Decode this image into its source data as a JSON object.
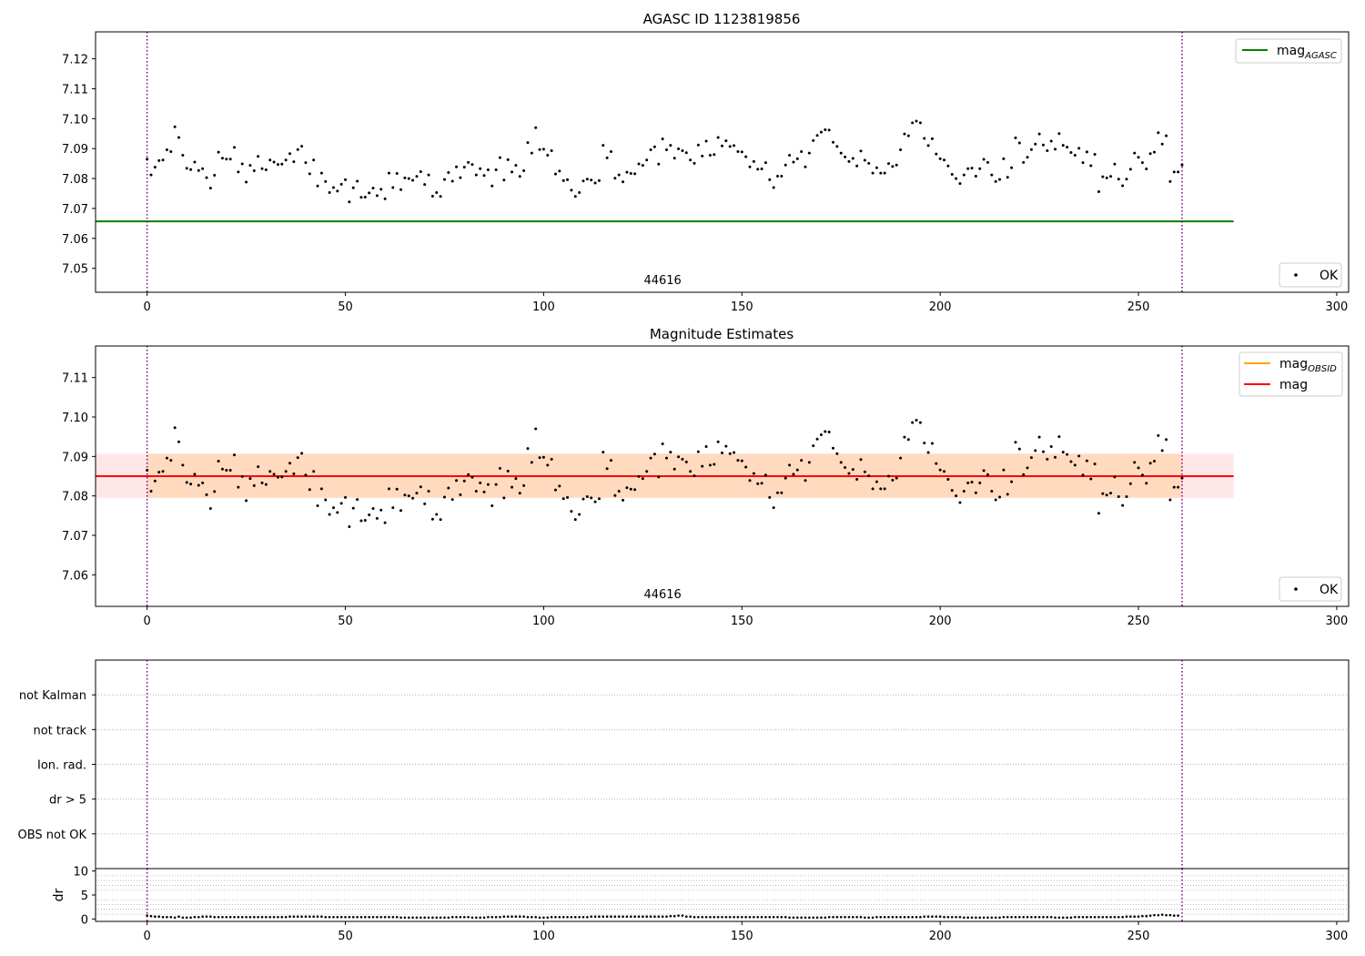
{
  "chart_data": [
    {
      "type": "scatter",
      "title": "AGASC ID 1123819856",
      "xlim": [
        -13,
        303
      ],
      "ylim": [
        7.042,
        7.129
      ],
      "x_ticks": [
        0,
        50,
        100,
        150,
        200,
        250,
        300
      ],
      "y_ticks": [
        7.05,
        7.06,
        7.07,
        7.08,
        7.09,
        7.1,
        7.11,
        7.12
      ],
      "y_tick_decimals": 2,
      "obsid_label": "44616",
      "obsid_label_x": 130,
      "vlines": [
        0,
        261
      ],
      "vline_color": "#800080",
      "hline": {
        "name": "mag_AGASC",
        "value": 7.0657,
        "x_range": [
          -13,
          274
        ],
        "color": "#008000"
      },
      "legends": [
        {
          "position": "upper right",
          "entries": [
            {
              "kind": "line",
              "color": "#008000",
              "label": "mag",
              "sub": "AGASC"
            }
          ]
        },
        {
          "position": "lower right",
          "entries": [
            {
              "kind": "marker",
              "color": "#000000",
              "label": "OK"
            }
          ]
        }
      ],
      "series": [
        {
          "name": "OK",
          "color": "#000000",
          "ref": "mag_points"
        }
      ]
    },
    {
      "type": "scatter",
      "title": "Magnitude Estimates",
      "xlim": [
        -13,
        303
      ],
      "ylim": [
        7.052,
        7.118
      ],
      "x_ticks": [
        0,
        50,
        100,
        150,
        200,
        250,
        300
      ],
      "y_ticks": [
        7.06,
        7.07,
        7.08,
        7.09,
        7.1,
        7.11
      ],
      "y_tick_decimals": 2,
      "obsid_label": "44616",
      "obsid_label_x": 130,
      "vlines": [
        0,
        261
      ],
      "vline_color": "#800080",
      "bands": [
        {
          "name": "mag_OBSID band",
          "x_range": [
            -13,
            274
          ],
          "y_range": [
            7.0795,
            7.0907
          ],
          "color": "#ffb6c1",
          "opacity": 0.35
        },
        {
          "name": "mag_OBSID inner band",
          "x_range": [
            0,
            261
          ],
          "y_range": [
            7.0795,
            7.0907
          ],
          "color": "#ffa500",
          "opacity": 0.18
        }
      ],
      "hline": {
        "name": "mag",
        "value": 7.085,
        "x_range": [
          -13,
          274
        ],
        "color": "#ff0000"
      },
      "legends": [
        {
          "position": "upper right",
          "entries": [
            {
              "kind": "line",
              "color": "#ffa500",
              "label": "mag",
              "sub": "OBSID"
            },
            {
              "kind": "line",
              "color": "#ff0000",
              "label": "mag"
            }
          ]
        },
        {
          "position": "lower right",
          "entries": [
            {
              "kind": "marker",
              "color": "#000000",
              "label": "OK"
            }
          ]
        }
      ],
      "series": [
        {
          "name": "OK",
          "color": "#000000",
          "ref": "mag_points"
        }
      ]
    },
    {
      "type": "scatter",
      "title": "",
      "xlim": [
        -13,
        303
      ],
      "categories": [
        "OBS not OK",
        "dr > 5",
        "Ion. rad.",
        "not track",
        "not Kalman"
      ],
      "vlines": [
        0,
        261
      ],
      "vline_color": "#800080",
      "flag_points": []
    },
    {
      "type": "scatter",
      "title": "",
      "xlim": [
        -13,
        303
      ],
      "ylim": [
        -0.5,
        10.5
      ],
      "ylabel": "dr",
      "x_ticks": [
        0,
        50,
        100,
        150,
        200,
        250,
        300
      ],
      "y_ticks": [
        0,
        5,
        10
      ],
      "vlines": [
        0,
        261
      ],
      "vline_color": "#800080",
      "dr_values": [
        0.7,
        0.6,
        0.5,
        0.5,
        0.4,
        0.4,
        0.4,
        0.3,
        0.5,
        0.3,
        0.3,
        0.3,
        0.4,
        0.4,
        0.5,
        0.5,
        0.5,
        0.4,
        0.4,
        0.4,
        0.4,
        0.4,
        0.4,
        0.4,
        0.4,
        0.4,
        0.4,
        0.4,
        0.4,
        0.4,
        0.4,
        0.4,
        0.4,
        0.4,
        0.4,
        0.4,
        0.5,
        0.5,
        0.5,
        0.5,
        0.5,
        0.5,
        0.5,
        0.5,
        0.5,
        0.4,
        0.4,
        0.4,
        0.4,
        0.4,
        0.4,
        0.4,
        0.4,
        0.4,
        0.4,
        0.4,
        0.4,
        0.4,
        0.4,
        0.4,
        0.4,
        0.4,
        0.4,
        0.4,
        0.3,
        0.3,
        0.3,
        0.3,
        0.3,
        0.3,
        0.3,
        0.3,
        0.3,
        0.3,
        0.3,
        0.3,
        0.3,
        0.4,
        0.4,
        0.4,
        0.4,
        0.4,
        0.3,
        0.3,
        0.3,
        0.3,
        0.4,
        0.4,
        0.4,
        0.4,
        0.5,
        0.5,
        0.5,
        0.5,
        0.5,
        0.5,
        0.4,
        0.4,
        0.4,
        0.3,
        0.3,
        0.3,
        0.4,
        0.4,
        0.4,
        0.4,
        0.4,
        0.4,
        0.4,
        0.4,
        0.4,
        0.4,
        0.5,
        0.5,
        0.5,
        0.5,
        0.5,
        0.5,
        0.5,
        0.5,
        0.5,
        0.5,
        0.5,
        0.5,
        0.5,
        0.5,
        0.5,
        0.5,
        0.5,
        0.5,
        0.5,
        0.5,
        0.6,
        0.6,
        0.7,
        0.7,
        0.5,
        0.5,
        0.4,
        0.4,
        0.4,
        0.4,
        0.4,
        0.4,
        0.4,
        0.4,
        0.4,
        0.4,
        0.4,
        0.4,
        0.4,
        0.4,
        0.4,
        0.4,
        0.4,
        0.4,
        0.4,
        0.4,
        0.4,
        0.4,
        0.4,
        0.4,
        0.3,
        0.3,
        0.3,
        0.3,
        0.3,
        0.3,
        0.3,
        0.3,
        0.3,
        0.3,
        0.4,
        0.4,
        0.4,
        0.4,
        0.4,
        0.4,
        0.4,
        0.4,
        0.4,
        0.3,
        0.3,
        0.3,
        0.4,
        0.4,
        0.4,
        0.4,
        0.4,
        0.4,
        0.4,
        0.4,
        0.4,
        0.4,
        0.4,
        0.4,
        0.5,
        0.5,
        0.5,
        0.5,
        0.5,
        0.4,
        0.4,
        0.4,
        0.4,
        0.4,
        0.3,
        0.3,
        0.3,
        0.3,
        0.3,
        0.3,
        0.3,
        0.3,
        0.3,
        0.3,
        0.4,
        0.4,
        0.4,
        0.4,
        0.4,
        0.4,
        0.4,
        0.4,
        0.4,
        0.4,
        0.4,
        0.4,
        0.4,
        0.3,
        0.3,
        0.3,
        0.3,
        0.3,
        0.4,
        0.4,
        0.4,
        0.4,
        0.4,
        0.4,
        0.4,
        0.4,
        0.4,
        0.4,
        0.4,
        0.4,
        0.4,
        0.5,
        0.5,
        0.5,
        0.5,
        0.6,
        0.6,
        0.7,
        0.8,
        0.8,
        0.9,
        0.8,
        0.8,
        0.7,
        0.7
      ]
    }
  ],
  "mag_points": [
    7.0865,
    7.0812,
    7.0838,
    7.086,
    7.0862,
    7.0896,
    7.089,
    7.0973,
    7.0937,
    7.0878,
    7.0834,
    7.083,
    7.0855,
    7.0827,
    7.0833,
    7.0803,
    7.0768,
    7.0811,
    7.0888,
    7.0868,
    7.0865,
    7.0865,
    7.0904,
    7.0822,
    7.0849,
    7.0788,
    7.0844,
    7.0826,
    7.0874,
    7.0833,
    7.0829,
    7.0862,
    7.0855,
    7.0847,
    7.0848,
    7.0862,
    7.0883,
    7.0856,
    7.0897,
    7.0908,
    7.0853,
    7.0816,
    7.0862,
    7.0775,
    7.0818,
    7.079,
    7.0753,
    7.077,
    7.0758,
    7.0781,
    7.0796,
    7.0722,
    7.0769,
    7.0791,
    7.0737,
    7.0738,
    7.0752,
    7.0768,
    7.0743,
    7.0764,
    7.0732,
    7.0818,
    7.077,
    7.0817,
    7.0763,
    7.0802,
    7.08,
    7.0794,
    7.0807,
    7.0823,
    7.078,
    7.0812,
    7.0741,
    7.0753,
    7.074,
    7.0797,
    7.082,
    7.0791,
    7.0839,
    7.0803,
    7.0838,
    7.0854,
    7.0847,
    7.0812,
    7.0833,
    7.081,
    7.0829,
    7.0775,
    7.0829,
    7.087,
    7.0795,
    7.0863,
    7.0822,
    7.0844,
    7.0807,
    7.0826,
    7.092,
    7.0885,
    7.097,
    7.0897,
    7.0898,
    7.0878,
    7.0893,
    7.0815,
    7.0825,
    7.0793,
    7.0796,
    7.0761,
    7.074,
    7.0753,
    7.0792,
    7.0798,
    7.0795,
    7.0785,
    7.0793,
    7.0911,
    7.0869,
    7.089,
    7.0801,
    7.0812,
    7.0789,
    7.0821,
    7.0817,
    7.0816,
    7.0849,
    7.0844,
    7.0862,
    7.0896,
    7.0906,
    7.0848,
    7.0932,
    7.0896,
    7.0911,
    7.0868,
    7.0899,
    7.0893,
    7.0886,
    7.0862,
    7.0851,
    7.0912,
    7.0875,
    7.0925,
    7.0878,
    7.088,
    7.0937,
    7.0909,
    7.0926,
    7.0907,
    7.091,
    7.089,
    7.0889,
    7.0873,
    7.0839,
    7.0857,
    7.0831,
    7.0832,
    7.0853,
    7.0796,
    7.077,
    7.0808,
    7.0808,
    7.0845,
    7.0878,
    7.0855,
    7.0866,
    7.089,
    7.0839,
    7.0885,
    7.0927,
    7.0944,
    7.0955,
    7.0963,
    7.0962,
    7.0921,
    7.0907,
    7.0885,
    7.0872,
    7.0857,
    7.0867,
    7.0842,
    7.0892,
    7.0861,
    7.0851,
    7.0818,
    7.0836,
    7.0818,
    7.0818,
    7.085,
    7.084,
    7.0845,
    7.0896,
    7.0949,
    7.0943,
    7.0986,
    7.0992,
    7.0986,
    7.0934,
    7.091,
    7.0933,
    7.0882,
    7.0866,
    7.0862,
    7.0842,
    7.0814,
    7.08,
    7.0783,
    7.0812,
    7.0833,
    7.0835,
    7.0808,
    7.0833,
    7.0864,
    7.0854,
    7.0812,
    7.079,
    7.0797,
    7.0866,
    7.0804,
    7.0836,
    7.0936,
    7.0919,
    7.0854,
    7.0871,
    7.0897,
    7.0915,
    7.0949,
    7.0912,
    7.0893,
    7.0925,
    7.0898,
    7.095,
    7.0911,
    7.0905,
    7.0887,
    7.0878,
    7.0901,
    7.0853,
    7.0889,
    7.0843,
    7.0881,
    7.0756,
    7.0806,
    7.0802,
    7.0807,
    7.0848,
    7.0798,
    7.0776,
    7.0798,
    7.0831,
    7.0885,
    7.0871,
    7.0853,
    7.0832,
    7.0883,
    7.0888,
    7.0953,
    7.0915,
    7.0943,
    7.079,
    7.0822,
    7.0822,
    7.0845
  ]
}
